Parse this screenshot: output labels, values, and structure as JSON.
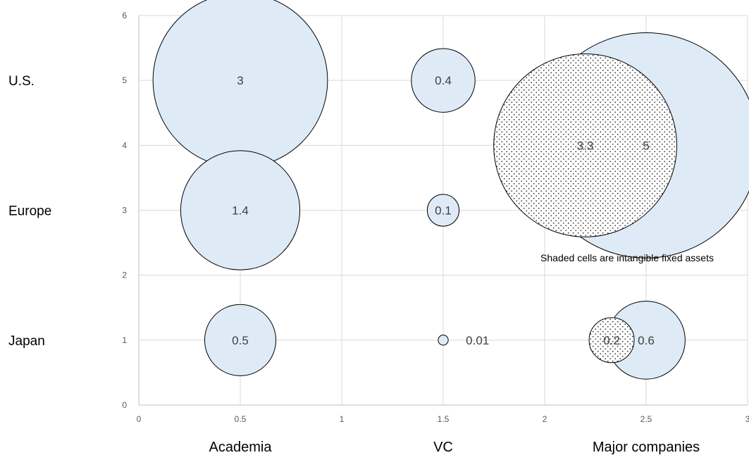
{
  "chart_data": {
    "type": "bubble",
    "x_ticks": [
      "0",
      "0.5",
      "1",
      "1.5",
      "2",
      "2.5",
      "3"
    ],
    "y_ticks": [
      "0",
      "1",
      "2",
      "3",
      "4",
      "5",
      "6"
    ],
    "xlim": [
      0,
      3
    ],
    "ylim": [
      0,
      6
    ],
    "grid": true,
    "row_labels": [
      {
        "label": "U.S.",
        "y": 5
      },
      {
        "label": "Europe",
        "y": 3
      },
      {
        "label": "Japan",
        "y": 1
      }
    ],
    "column_labels": [
      {
        "label": "Academia",
        "x": 0.5
      },
      {
        "label": "VC",
        "x": 1.5
      },
      {
        "label": "Major companies",
        "x": 2.5
      }
    ],
    "annotation": "Shaded cells are intangible fixed assets",
    "series": [
      {
        "style": "plain",
        "points": [
          {
            "x": 0.5,
            "y": 5,
            "size": 3,
            "label": "3"
          },
          {
            "x": 1.5,
            "y": 5,
            "size": 0.4,
            "label": "0.4"
          },
          {
            "x": 2.5,
            "y": 4,
            "size": 5,
            "label": "5"
          },
          {
            "x": 0.5,
            "y": 3,
            "size": 1.4,
            "label": "1.4"
          },
          {
            "x": 1.5,
            "y": 3,
            "size": 0.1,
            "label": "0.1"
          },
          {
            "x": 0.5,
            "y": 1,
            "size": 0.5,
            "label": "0.5"
          },
          {
            "x": 1.5,
            "y": 1,
            "size": 0.01,
            "label": "0.01"
          },
          {
            "x": 2.5,
            "y": 1,
            "size": 0.6,
            "label": "0.6"
          }
        ]
      },
      {
        "style": "dotted",
        "points": [
          {
            "x": 2.2,
            "y": 4,
            "size": 3.3,
            "label": "3.3"
          },
          {
            "x": 2.33,
            "y": 1,
            "size": 0.2,
            "label": "0.2"
          }
        ]
      }
    ],
    "colors": {
      "bubble_fill": "#deebf7",
      "bubble_stroke": "#000000",
      "grid": "#d9d9d9",
      "axis": "#bfbfbf"
    }
  }
}
